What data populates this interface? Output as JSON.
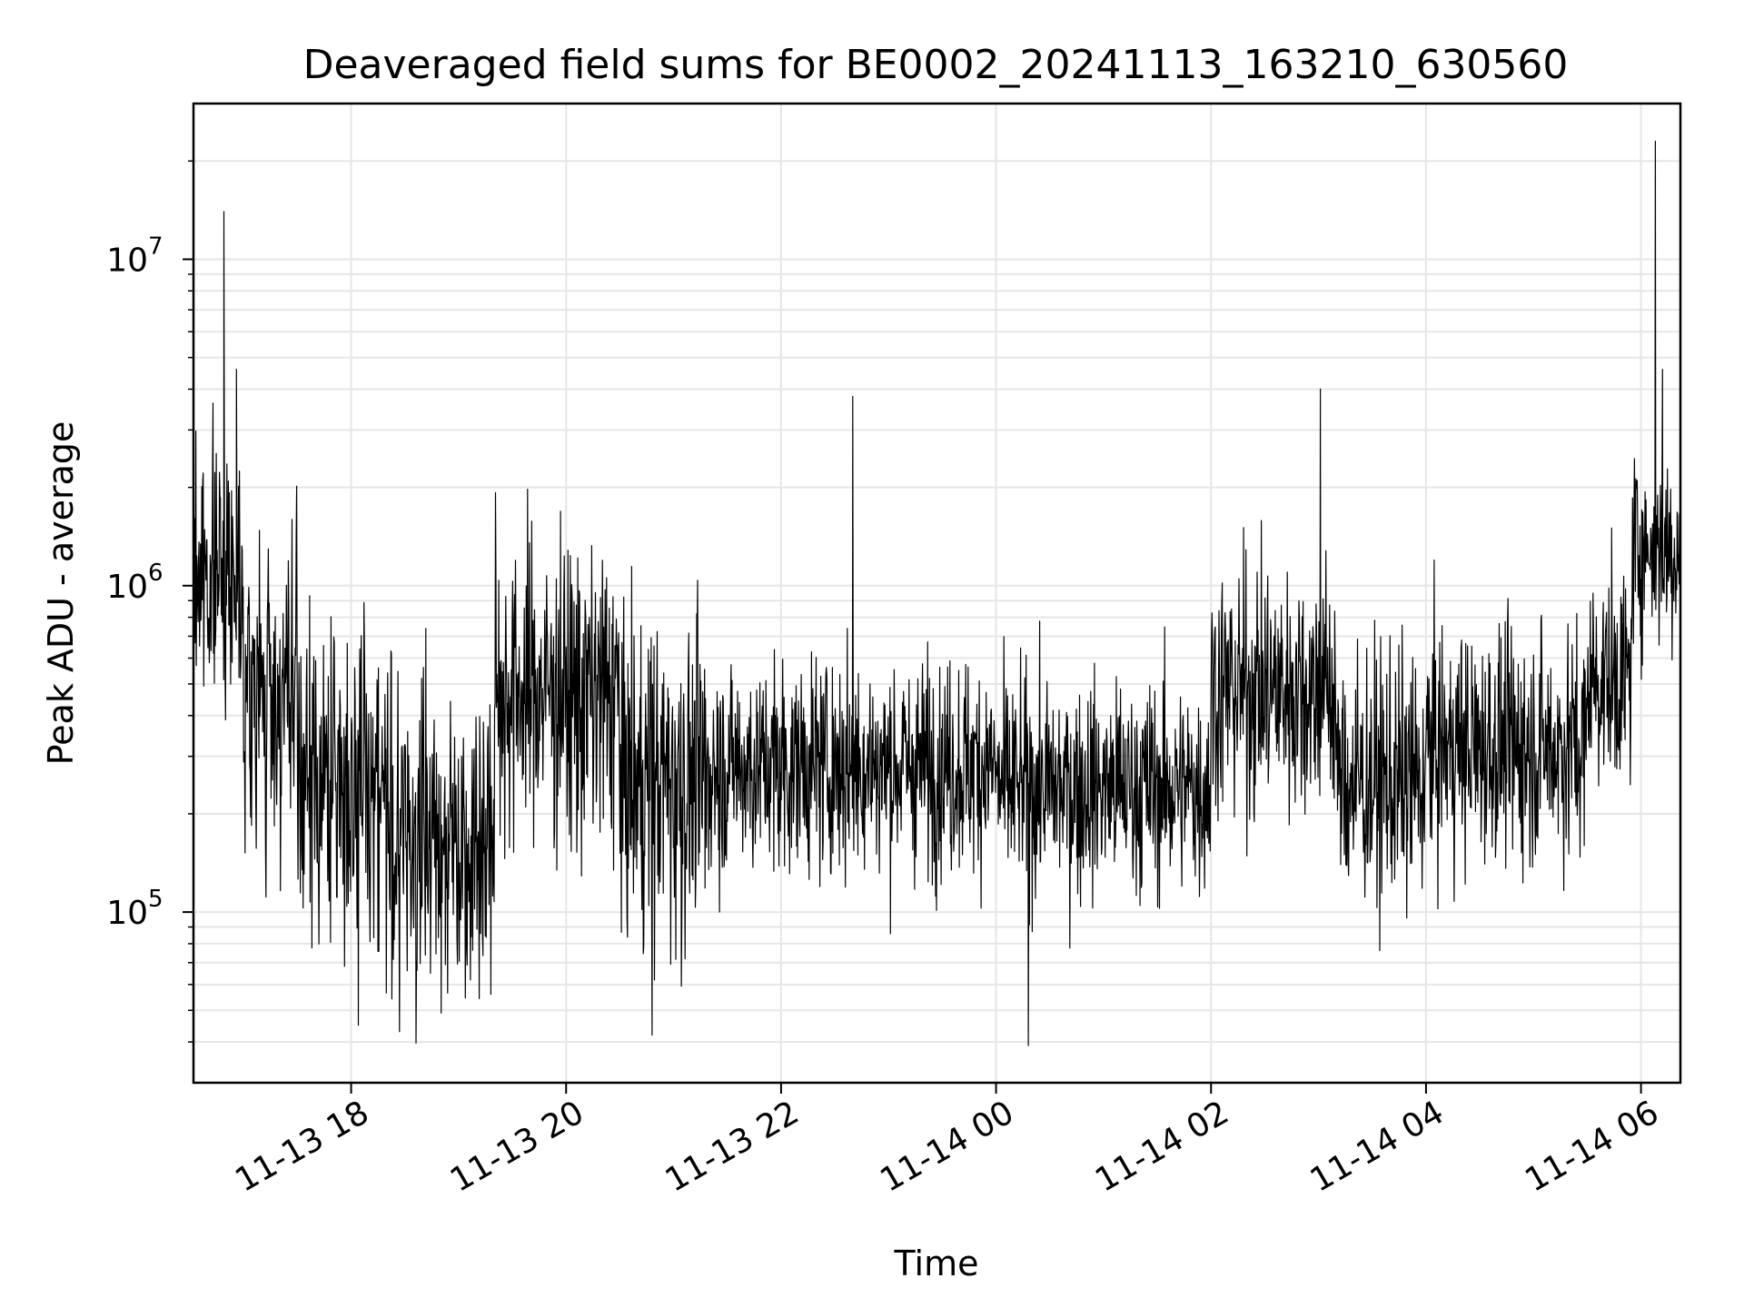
{
  "chart_data": {
    "type": "line",
    "title": "Deaveraged field sums for BE0002_20241113_163210_630560",
    "xlabel": "Time",
    "ylabel": "Peak ADU - average",
    "yscale": "log",
    "ylim": [
      30000,
      30000000
    ],
    "xlim": [
      "2024-11-13 16:32",
      "2024-11-14 06:22"
    ],
    "grid": true,
    "line_color": "#000000",
    "x_ticks": [
      {
        "label": "11-13 18",
        "t": "2024-11-13 18:00"
      },
      {
        "label": "11-13 20",
        "t": "2024-11-13 20:00"
      },
      {
        "label": "11-13 22",
        "t": "2024-11-13 22:00"
      },
      {
        "label": "11-14 00",
        "t": "2024-11-14 00:00"
      },
      {
        "label": "11-14 02",
        "t": "2024-11-14 02:00"
      },
      {
        "label": "11-14 04",
        "t": "2024-11-14 04:00"
      },
      {
        "label": "11-14 06",
        "t": "2024-11-14 06:00"
      }
    ],
    "y_ticks": [
      {
        "base": "10",
        "exp": "5",
        "value": 100000
      },
      {
        "base": "10",
        "exp": "6",
        "value": 1000000
      },
      {
        "base": "10",
        "exp": "7",
        "value": 10000000
      }
    ],
    "segments": [
      {
        "start": "2024-11-13 16:32",
        "end": "2024-11-13 17:00",
        "center": 1100000,
        "spread": 0.55
      },
      {
        "start": "2024-11-13 17:00",
        "end": "2024-11-13 17:30",
        "center": 450000,
        "spread": 0.75
      },
      {
        "start": "2024-11-13 17:30",
        "end": "2024-11-13 18:20",
        "center": 250000,
        "spread": 0.75
      },
      {
        "start": "2024-11-13 18:20",
        "end": "2024-11-13 19:20",
        "center": 170000,
        "spread": 0.75
      },
      {
        "start": "2024-11-13 19:20",
        "end": "2024-11-13 20:00",
        "center": 480000,
        "spread": 0.7
      },
      {
        "start": "2024-11-13 20:00",
        "end": "2024-11-13 20:30",
        "center": 450000,
        "spread": 0.75
      },
      {
        "start": "2024-11-13 20:30",
        "end": "2024-11-13 21:20",
        "center": 250000,
        "spread": 0.75
      },
      {
        "start": "2024-11-13 21:20",
        "end": "2024-11-14 00:00",
        "center": 280000,
        "spread": 0.5
      },
      {
        "start": "2024-11-14 00:00",
        "end": "2024-11-14 02:00",
        "center": 240000,
        "spread": 0.5
      },
      {
        "start": "2024-11-14 02:00",
        "end": "2024-11-14 03:10",
        "center": 480000,
        "spread": 0.6
      },
      {
        "start": "2024-11-14 03:10",
        "end": "2024-11-14 04:00",
        "center": 250000,
        "spread": 0.6
      },
      {
        "start": "2024-11-14 04:00",
        "end": "2024-11-14 05:30",
        "center": 320000,
        "spread": 0.55
      },
      {
        "start": "2024-11-14 05:30",
        "end": "2024-11-14 05:55",
        "center": 520000,
        "spread": 0.5
      },
      {
        "start": "2024-11-14 05:55",
        "end": "2024-11-14 06:22",
        "center": 1300000,
        "spread": 0.45
      }
    ],
    "notable_peaks": [
      {
        "t": "2024-11-13 16:49",
        "value": 14000000
      },
      {
        "t": "2024-11-14 06:08",
        "value": 23000000
      },
      {
        "t": "2024-11-13 16:56",
        "value": 4600000
      },
      {
        "t": "2024-11-14 06:12",
        "value": 4600000
      },
      {
        "t": "2024-11-13 22:40",
        "value": 3800000
      },
      {
        "t": "2024-11-14 03:01",
        "value": 4000000
      }
    ],
    "notable_lows": [
      {
        "t": "2024-11-14 00:18",
        "value": 39000
      },
      {
        "t": "2024-11-13 20:48",
        "value": 42000
      },
      {
        "t": "2024-11-13 18:27",
        "value": 43000
      },
      {
        "t": "2024-11-13 18:04",
        "value": 45000
      }
    ]
  }
}
